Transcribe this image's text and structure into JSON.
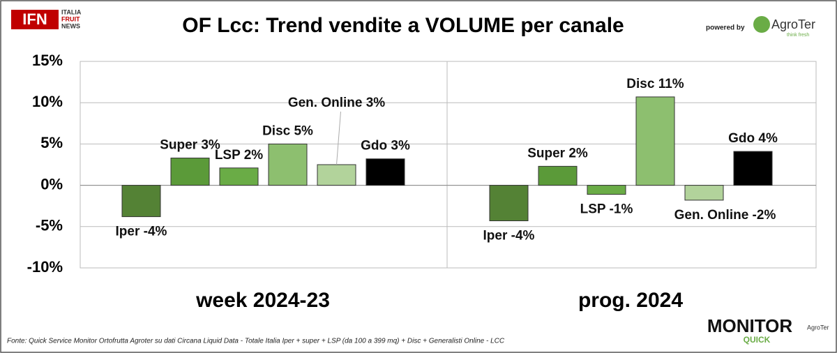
{
  "header": {
    "logo": "IFN",
    "logo_sub": [
      "ITALIA",
      "FRUIT",
      "NEWS"
    ],
    "powered_by": "powered by",
    "brand": "AgroTer",
    "brand_sub": "think fresh"
  },
  "chart_data": {
    "type": "bar",
    "title": "OF Lcc: Trend vendite a VOLUME per canale",
    "ylim": [
      -10,
      15
    ],
    "yticks": [
      {
        "value": -10,
        "label": "-10%"
      },
      {
        "value": -5,
        "label": "-5%"
      },
      {
        "value": 0,
        "label": "0%"
      },
      {
        "value": 5,
        "label": "5%"
      },
      {
        "value": 10,
        "label": "10%"
      },
      {
        "value": 15,
        "label": "15%"
      }
    ],
    "colors": [
      "#548235",
      "#5b9a39",
      "#6aac46",
      "#8dbf6f",
      "#b2d39b",
      "#000000"
    ],
    "panels": [
      {
        "name": "week 2024-23",
        "values": [
          -3.8,
          3.3,
          2.1,
          5.0,
          2.5,
          3.2
        ],
        "value_labels": [
          "Iper -4%",
          "Super 3%",
          "LSP 2%",
          "Disc 5%",
          "Gen. Online 3%",
          "Gdo 3%"
        ]
      },
      {
        "name": "prog. 2024",
        "values": [
          -4.3,
          2.3,
          -1.1,
          10.7,
          -1.8,
          4.1
        ],
        "value_labels": [
          "Iper -4%",
          "Super 2%",
          "LSP -1%",
          "Disc 11%",
          "Gen. Online -2%",
          "Gdo 4%"
        ]
      }
    ]
  },
  "footer": {
    "source": "Fonte: Quick Service Monitor Ortofrutta Agroter su dati Circana Liquid Data - Totale Italia Iper + super + LSP (da 100 a 399 mq) + Disc + Generalisti Online - LCC",
    "monitor": "MONITOR",
    "quick": "QUICK"
  }
}
